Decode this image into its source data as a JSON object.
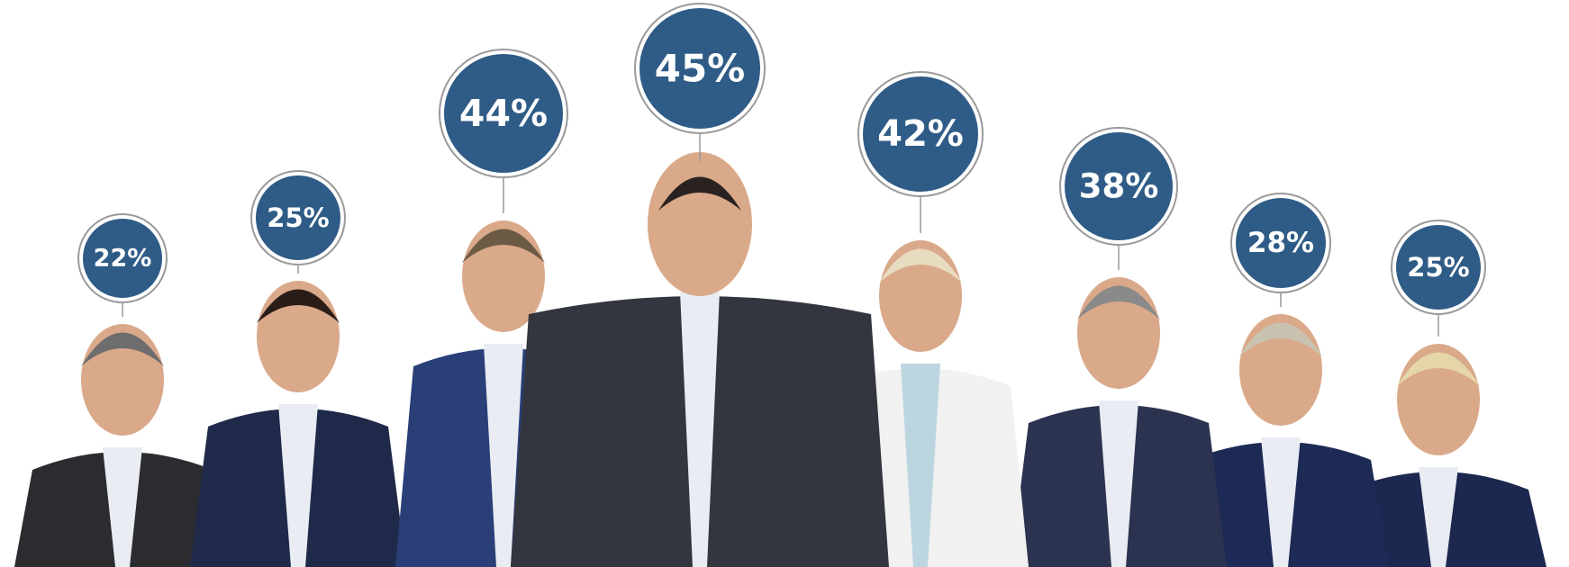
{
  "chart_data": {
    "type": "bubble",
    "values": [
      22,
      25,
      44,
      45,
      42,
      38,
      28,
      25
    ],
    "value_labels": [
      "22%",
      "25%",
      "44%",
      "45%",
      "42%",
      "38%",
      "28%",
      "25%"
    ],
    "color": "#2f5c86"
  }
}
